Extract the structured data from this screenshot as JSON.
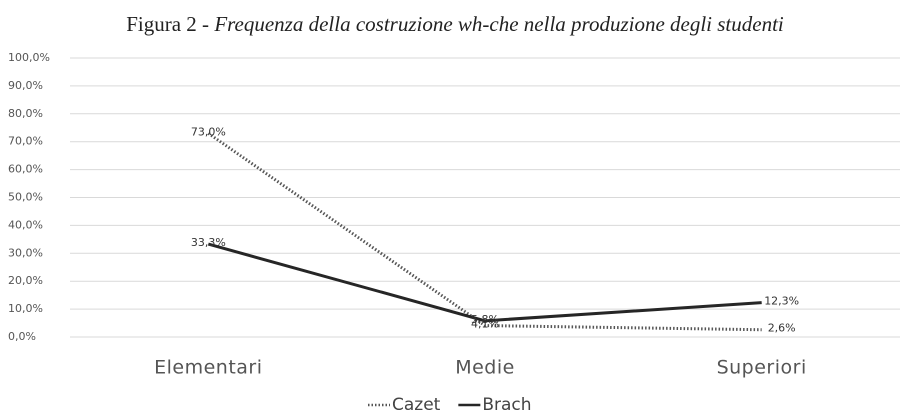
{
  "chart_data": {
    "type": "line",
    "title": [
      "Figura 2 -",
      "Frequenza della costruzione wh-che nella produzione degli studenti"
    ],
    "categories": [
      "Elementari",
      "Medie",
      "Superiori"
    ],
    "series": [
      {
        "name": "Cazet",
        "color": "#555555",
        "dash": true,
        "values": [
          73.0,
          4.1,
          2.6
        ],
        "value_labels": [
          "73,0%",
          "4,1%",
          "2,6%"
        ]
      },
      {
        "name": "Brach",
        "color": "#262626",
        "dash": false,
        "values": [
          33.3,
          5.8,
          12.3
        ],
        "value_labels": [
          "33,3%",
          "5,8%",
          "12,3%"
        ]
      }
    ],
    "ylim": [
      0,
      100
    ],
    "yticks": [
      {
        "value": 0,
        "label": "0,0%"
      },
      {
        "value": 10,
        "label": "10,0%"
      },
      {
        "value": 20,
        "label": "20,0%"
      },
      {
        "value": 30,
        "label": "30,0%"
      },
      {
        "value": 40,
        "label": "40,0%"
      },
      {
        "value": 50,
        "label": "50,0%"
      },
      {
        "value": 60,
        "label": "60,0%"
      },
      {
        "value": 70,
        "label": "70,0%"
      },
      {
        "value": 80,
        "label": "80,0%"
      },
      {
        "value": 90,
        "label": "90,0%"
      },
      {
        "value": 100,
        "label": "100,0%"
      }
    ],
    "grid": true,
    "legend": "bottom"
  }
}
